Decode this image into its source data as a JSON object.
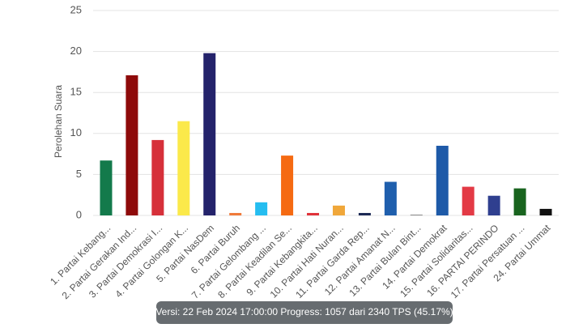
{
  "chart_data": {
    "type": "bar",
    "y_label": "Perolehan Suara",
    "categories": [
      "1. Partai Kebang...",
      "2. Partai Gerakan Ind...",
      "3. Partai Demokrasi I...",
      "4. Partai Golongan K...",
      "5. Partai NasDem",
      "6. Partai Buruh",
      "7. Partai Gelombang ...",
      "8. Partai Keadilan Se...",
      "9. Partai Kebangkita...",
      "10. Partai Hati Nuran...",
      "11. Partai Garda Rep...",
      "12. Partai Amanat N...",
      "13. Partai Bulan Bint...",
      "14. Partai Demokrat",
      "15. Partai Solidaritas...",
      "16. PARTAI PERINDO",
      "17. Partai Persatuan ...",
      "24. Partai Ummat"
    ],
    "values": [
      6.7,
      17.1,
      9.2,
      11.5,
      19.8,
      0.3,
      1.6,
      7.3,
      0.3,
      1.2,
      0.3,
      4.1,
      0.1,
      8.5,
      3.5,
      2.4,
      3.3,
      0.8
    ],
    "colors": [
      "#137a4b",
      "#8e0a0a",
      "#d6303a",
      "#fbe94a",
      "#24236b",
      "#f07a3a",
      "#25bdf0",
      "#f56a12",
      "#e0323a",
      "#f0a73a",
      "#1c2a55",
      "#1f5fad",
      "#8a8a8a",
      "#1e5aa8",
      "#e33a45",
      "#2f3f8f",
      "#19641f",
      "#111111"
    ],
    "ylim": [
      0,
      25
    ],
    "yticks": [
      0,
      5,
      10,
      15,
      20,
      25
    ],
    "grid": true,
    "tooltip": "Versi: 22 Feb 2024 17:00:00 Progress: 1057 dari 2340 TPS (45.17%)"
  }
}
